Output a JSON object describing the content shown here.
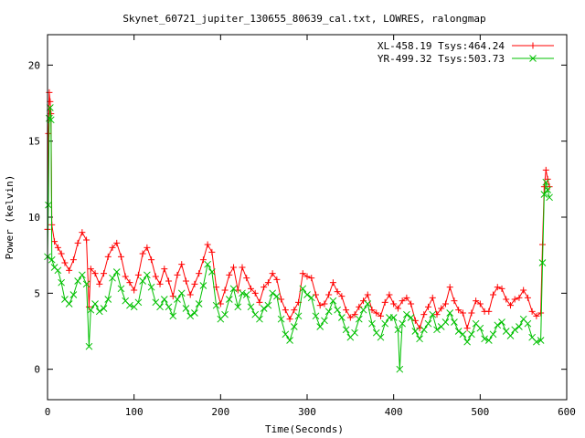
{
  "chart_data": {
    "type": "line",
    "title": "Skynet_60721_jupiter_130655_80639_cal.txt, LOWRES, ralongmap",
    "xlabel": "Time(Seconds)",
    "ylabel": "Power (kelvin)",
    "xlim": [
      0,
      600
    ],
    "ylim": [
      -2,
      22
    ],
    "xticks": [
      0,
      100,
      200,
      300,
      400,
      500,
      600
    ],
    "yticks": [
      0,
      5,
      10,
      15,
      20
    ],
    "grid": false,
    "legend_position": "top-right",
    "series": [
      {
        "name": "XL-458.19 Tsys:464.24",
        "color": "#ff0000",
        "marker": "plus",
        "points": [
          [
            0,
            9.2
          ],
          [
            1,
            15.5
          ],
          [
            2,
            18.2
          ],
          [
            3,
            17.6
          ],
          [
            4,
            16.8
          ],
          [
            5,
            9.5
          ],
          [
            8,
            8.4
          ],
          [
            12,
            8.0
          ],
          [
            16,
            7.6
          ],
          [
            20,
            7.0
          ],
          [
            25,
            6.5
          ],
          [
            30,
            7.2
          ],
          [
            35,
            8.3
          ],
          [
            40,
            9.0
          ],
          [
            45,
            8.5
          ],
          [
            48,
            4.1
          ],
          [
            50,
            6.6
          ],
          [
            55,
            6.3
          ],
          [
            60,
            5.6
          ],
          [
            65,
            6.3
          ],
          [
            70,
            7.4
          ],
          [
            75,
            8.0
          ],
          [
            80,
            8.3
          ],
          [
            85,
            7.4
          ],
          [
            90,
            6.1
          ],
          [
            95,
            5.7
          ],
          [
            100,
            5.2
          ],
          [
            105,
            6.2
          ],
          [
            110,
            7.6
          ],
          [
            115,
            8.0
          ],
          [
            120,
            7.2
          ],
          [
            125,
            6.1
          ],
          [
            130,
            5.6
          ],
          [
            135,
            6.6
          ],
          [
            140,
            5.8
          ],
          [
            145,
            4.8
          ],
          [
            150,
            6.2
          ],
          [
            155,
            6.9
          ],
          [
            160,
            5.8
          ],
          [
            165,
            4.9
          ],
          [
            170,
            5.6
          ],
          [
            175,
            6.3
          ],
          [
            180,
            7.2
          ],
          [
            185,
            8.2
          ],
          [
            190,
            7.7
          ],
          [
            195,
            5.4
          ],
          [
            200,
            4.3
          ],
          [
            205,
            5.2
          ],
          [
            210,
            6.2
          ],
          [
            215,
            6.7
          ],
          [
            220,
            5.2
          ],
          [
            225,
            6.7
          ],
          [
            230,
            6.0
          ],
          [
            235,
            5.3
          ],
          [
            240,
            5.0
          ],
          [
            245,
            4.4
          ],
          [
            250,
            5.4
          ],
          [
            255,
            5.7
          ],
          [
            260,
            6.3
          ],
          [
            265,
            5.9
          ],
          [
            270,
            4.6
          ],
          [
            275,
            3.9
          ],
          [
            280,
            3.3
          ],
          [
            285,
            3.9
          ],
          [
            290,
            4.4
          ],
          [
            295,
            6.3
          ],
          [
            300,
            6.1
          ],
          [
            305,
            6.0
          ],
          [
            310,
            4.9
          ],
          [
            315,
            4.2
          ],
          [
            320,
            4.3
          ],
          [
            325,
            4.9
          ],
          [
            330,
            5.7
          ],
          [
            335,
            5.1
          ],
          [
            340,
            4.8
          ],
          [
            345,
            3.9
          ],
          [
            350,
            3.4
          ],
          [
            355,
            3.6
          ],
          [
            360,
            4.1
          ],
          [
            365,
            4.5
          ],
          [
            370,
            4.9
          ],
          [
            375,
            3.9
          ],
          [
            380,
            3.7
          ],
          [
            385,
            3.5
          ],
          [
            390,
            4.4
          ],
          [
            395,
            4.9
          ],
          [
            400,
            4.3
          ],
          [
            405,
            4.0
          ],
          [
            410,
            4.5
          ],
          [
            415,
            4.7
          ],
          [
            420,
            4.3
          ],
          [
            425,
            3.2
          ],
          [
            430,
            2.7
          ],
          [
            435,
            3.6
          ],
          [
            440,
            4.1
          ],
          [
            445,
            4.7
          ],
          [
            450,
            3.6
          ],
          [
            455,
            4.0
          ],
          [
            460,
            4.3
          ],
          [
            465,
            5.4
          ],
          [
            470,
            4.5
          ],
          [
            475,
            3.9
          ],
          [
            480,
            3.7
          ],
          [
            485,
            2.7
          ],
          [
            490,
            3.7
          ],
          [
            495,
            4.5
          ],
          [
            500,
            4.3
          ],
          [
            505,
            3.8
          ],
          [
            510,
            3.8
          ],
          [
            515,
            4.9
          ],
          [
            520,
            5.4
          ],
          [
            525,
            5.3
          ],
          [
            530,
            4.6
          ],
          [
            535,
            4.2
          ],
          [
            540,
            4.6
          ],
          [
            545,
            4.7
          ],
          [
            550,
            5.2
          ],
          [
            555,
            4.7
          ],
          [
            560,
            3.8
          ],
          [
            565,
            3.5
          ],
          [
            570,
            3.7
          ],
          [
            572,
            8.2
          ],
          [
            574,
            12.0
          ],
          [
            576,
            13.1
          ],
          [
            578,
            12.5
          ],
          [
            580,
            12.0
          ]
        ]
      },
      {
        "name": "YR-499.32 Tsys:503.73",
        "color": "#00c000",
        "marker": "cross",
        "points": [
          [
            0,
            7.4
          ],
          [
            1,
            10.8
          ],
          [
            2,
            16.5
          ],
          [
            3,
            17.2
          ],
          [
            4,
            16.4
          ],
          [
            5,
            7.2
          ],
          [
            8,
            6.7
          ],
          [
            12,
            6.5
          ],
          [
            16,
            5.7
          ],
          [
            20,
            4.6
          ],
          [
            25,
            4.3
          ],
          [
            30,
            4.9
          ],
          [
            35,
            5.8
          ],
          [
            40,
            6.2
          ],
          [
            45,
            5.6
          ],
          [
            48,
            1.5
          ],
          [
            50,
            3.9
          ],
          [
            55,
            4.3
          ],
          [
            60,
            3.8
          ],
          [
            65,
            4.0
          ],
          [
            70,
            4.6
          ],
          [
            75,
            6.0
          ],
          [
            80,
            6.4
          ],
          [
            85,
            5.3
          ],
          [
            90,
            4.5
          ],
          [
            95,
            4.2
          ],
          [
            100,
            4.1
          ],
          [
            105,
            4.4
          ],
          [
            110,
            5.8
          ],
          [
            115,
            6.2
          ],
          [
            120,
            5.4
          ],
          [
            125,
            4.4
          ],
          [
            130,
            4.1
          ],
          [
            135,
            4.6
          ],
          [
            140,
            4.1
          ],
          [
            145,
            3.5
          ],
          [
            150,
            4.6
          ],
          [
            155,
            5.0
          ],
          [
            160,
            4.0
          ],
          [
            165,
            3.5
          ],
          [
            170,
            3.7
          ],
          [
            175,
            4.3
          ],
          [
            180,
            5.5
          ],
          [
            185,
            6.9
          ],
          [
            190,
            6.4
          ],
          [
            195,
            4.2
          ],
          [
            200,
            3.3
          ],
          [
            205,
            3.6
          ],
          [
            210,
            4.6
          ],
          [
            215,
            5.3
          ],
          [
            220,
            4.1
          ],
          [
            225,
            5.0
          ],
          [
            230,
            4.9
          ],
          [
            235,
            4.1
          ],
          [
            240,
            3.6
          ],
          [
            245,
            3.3
          ],
          [
            250,
            4.0
          ],
          [
            255,
            4.2
          ],
          [
            260,
            5.0
          ],
          [
            265,
            4.8
          ],
          [
            270,
            3.3
          ],
          [
            275,
            2.3
          ],
          [
            280,
            1.9
          ],
          [
            285,
            2.8
          ],
          [
            290,
            3.5
          ],
          [
            295,
            5.3
          ],
          [
            300,
            4.9
          ],
          [
            305,
            4.7
          ],
          [
            310,
            3.5
          ],
          [
            315,
            2.8
          ],
          [
            320,
            3.2
          ],
          [
            325,
            3.8
          ],
          [
            330,
            4.5
          ],
          [
            335,
            3.9
          ],
          [
            340,
            3.4
          ],
          [
            345,
            2.6
          ],
          [
            350,
            2.1
          ],
          [
            355,
            2.4
          ],
          [
            360,
            3.3
          ],
          [
            365,
            3.9
          ],
          [
            370,
            4.3
          ],
          [
            375,
            3.0
          ],
          [
            380,
            2.4
          ],
          [
            385,
            2.1
          ],
          [
            390,
            3.0
          ],
          [
            395,
            3.4
          ],
          [
            400,
            3.4
          ],
          [
            405,
            2.6
          ],
          [
            407,
            0.0
          ],
          [
            410,
            3.0
          ],
          [
            415,
            3.6
          ],
          [
            420,
            3.4
          ],
          [
            425,
            2.5
          ],
          [
            430,
            2.0
          ],
          [
            435,
            2.6
          ],
          [
            440,
            3.0
          ],
          [
            445,
            3.6
          ],
          [
            450,
            2.6
          ],
          [
            455,
            2.8
          ],
          [
            460,
            3.1
          ],
          [
            465,
            3.7
          ],
          [
            470,
            3.1
          ],
          [
            475,
            2.5
          ],
          [
            480,
            2.3
          ],
          [
            485,
            1.8
          ],
          [
            490,
            2.3
          ],
          [
            495,
            3.0
          ],
          [
            500,
            2.7
          ],
          [
            505,
            2.0
          ],
          [
            510,
            1.9
          ],
          [
            515,
            2.3
          ],
          [
            520,
            2.9
          ],
          [
            525,
            3.1
          ],
          [
            530,
            2.5
          ],
          [
            535,
            2.2
          ],
          [
            540,
            2.6
          ],
          [
            545,
            2.8
          ],
          [
            550,
            3.3
          ],
          [
            555,
            3.0
          ],
          [
            560,
            2.1
          ],
          [
            565,
            1.8
          ],
          [
            570,
            1.9
          ],
          [
            572,
            7.0
          ],
          [
            574,
            11.5
          ],
          [
            576,
            12.3
          ],
          [
            578,
            11.8
          ],
          [
            580,
            11.3
          ]
        ]
      }
    ]
  }
}
